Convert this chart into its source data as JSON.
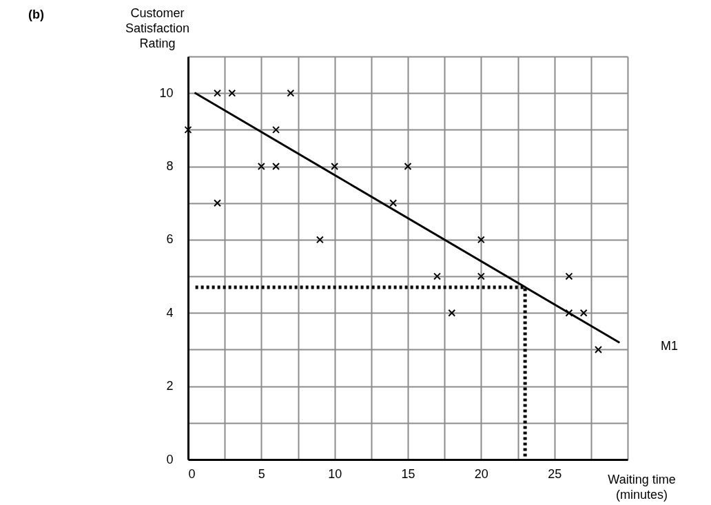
{
  "chart_data": {
    "type": "scatter",
    "xlabel": "Waiting time\n(minutes)",
    "ylabel": "Customer\nSatisfaction\nRating",
    "annotations": [
      "(b)",
      "M1"
    ],
    "xlim": [
      0,
      30
    ],
    "ylim": [
      0,
      11
    ],
    "xticks": [
      0,
      {
        "value": 2.5,
        "label": null
      },
      5,
      {
        "value": 7.5,
        "label": null
      },
      10,
      {
        "value": 12.5,
        "label": null
      },
      15,
      {
        "value": 17.5,
        "label": null
      },
      20,
      {
        "value": 22.5,
        "label": null
      },
      25,
      {
        "value": 27.5,
        "label": null
      },
      {
        "value": 30,
        "label": null
      }
    ],
    "yticks": [
      0,
      {
        "value": 1,
        "label": null
      },
      2,
      {
        "value": 3,
        "label": null
      },
      4,
      {
        "value": 5,
        "label": null
      },
      6,
      {
        "value": 7,
        "label": null
      },
      8,
      {
        "value": 9,
        "label": null
      },
      10,
      {
        "value": 11,
        "label": null
      }
    ],
    "grid": true,
    "series": [
      {
        "color": "#000000",
        "marker": "cross",
        "x": [
          0,
          2,
          3,
          7,
          6,
          5,
          6,
          10,
          15,
          2,
          14,
          9,
          20,
          17,
          20,
          26,
          18,
          26,
          27,
          28
        ],
        "values": [
          9,
          10,
          10,
          10,
          9,
          8,
          8,
          8,
          8,
          7,
          7,
          6,
          6,
          5,
          5,
          5,
          4,
          4,
          4,
          3
        ]
      },
      {
        "type": "line",
        "color": "#000000",
        "line_style": "solid",
        "marker": "none",
        "x": [
          0.5,
          29.4
        ],
        "values": [
          10,
          3.2
        ]
      },
      {
        "type": "line",
        "color": "#000000",
        "line_style": "dotted",
        "marker": "none",
        "x": [
          0.5,
          23,
          23
        ],
        "values": [
          4.7,
          4.7,
          0
        ]
      }
    ]
  }
}
